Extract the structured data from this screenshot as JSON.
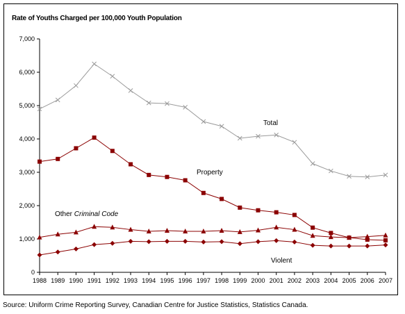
{
  "chart_data": {
    "type": "line",
    "title": "Rate of Youths Charged per 100,000 Youth Population",
    "xlabel": "",
    "ylabel": "",
    "ylim": [
      0,
      7000
    ],
    "yticks": [
      "0",
      "1,000",
      "2,000",
      "3,000",
      "4,000",
      "5,000",
      "6,000",
      "7,000"
    ],
    "x": [
      "1988",
      "1989",
      "1990",
      "1991",
      "1992",
      "1993",
      "1994",
      "1995",
      "1996",
      "1997",
      "1998",
      "1999",
      "2000",
      "2001",
      "2002",
      "2003",
      "2004",
      "2005",
      "2006",
      "2007"
    ],
    "grid": false,
    "series": [
      {
        "name": "Total",
        "color": "#9a9a9a",
        "marker": "x",
        "values": [
          4900,
          5170,
          5600,
          6250,
          5880,
          5450,
          5080,
          5060,
          4950,
          4520,
          4380,
          4020,
          4080,
          4120,
          3900,
          3260,
          3040,
          2880,
          2860,
          2920
        ]
      },
      {
        "name": "Property",
        "color": "#8b0000",
        "marker": "square",
        "values": [
          3320,
          3400,
          3720,
          4040,
          3640,
          3240,
          2920,
          2860,
          2760,
          2380,
          2200,
          1940,
          1860,
          1800,
          1720,
          1340,
          1180,
          1040,
          980,
          960
        ]
      },
      {
        "name": "Other Criminal Code",
        "label_parts": [
          "Other ",
          "Criminal Code"
        ],
        "color": "#8b0000",
        "marker": "triangle",
        "values": [
          1050,
          1140,
          1200,
          1370,
          1350,
          1280,
          1230,
          1250,
          1230,
          1230,
          1250,
          1210,
          1260,
          1350,
          1280,
          1100,
          1060,
          1040,
          1070,
          1110
        ]
      },
      {
        "name": "Violent",
        "color": "#8b0000",
        "marker": "diamond",
        "values": [
          520,
          610,
          700,
          830,
          870,
          930,
          920,
          930,
          930,
          910,
          920,
          860,
          920,
          950,
          910,
          810,
          790,
          790,
          790,
          820
        ]
      }
    ]
  },
  "source": "Source:  Uniform Crime Reporting Survey, Canadian Centre for Justice Statistics, Statistics Canada."
}
